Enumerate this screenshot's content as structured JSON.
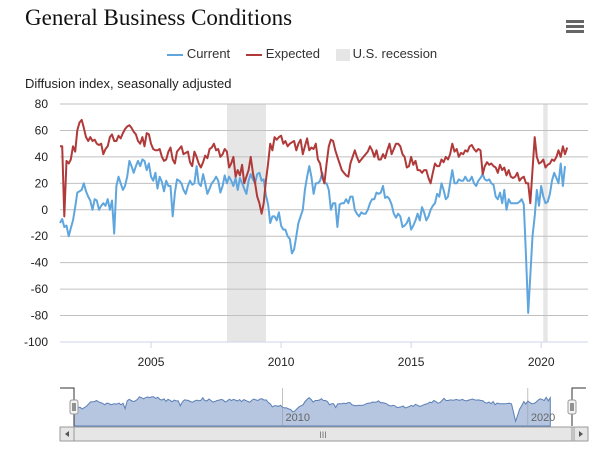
{
  "header": {
    "title": "General Business Conditions",
    "menu_icon": "hamburger-menu-icon"
  },
  "legend": [
    {
      "label": "Current",
      "color": "#5fa6de",
      "kind": "line"
    },
    {
      "label": "Expected",
      "color": "#b03a3a",
      "kind": "line"
    },
    {
      "label": "U.S. recession",
      "color": "#e6e6e6",
      "kind": "band"
    }
  ],
  "y_axis_title": "Diffusion index, seasonally adjusted",
  "navigator": {
    "labels": [
      "2010",
      "2020"
    ],
    "scrollbar_grip": "III",
    "left_arrow": "◂",
    "right_arrow": "▸"
  },
  "chart_data": {
    "type": "line",
    "title": "General Business Conditions",
    "ylabel": "Diffusion index, seasonally adjusted",
    "xlabel": "",
    "ylim": [
      -100,
      80
    ],
    "yticks": [
      80,
      60,
      40,
      20,
      0,
      -20,
      -40,
      -60,
      -80,
      -100
    ],
    "xticks": [
      "2005",
      "2010",
      "2015",
      "2020"
    ],
    "xlim": [
      2001.5,
      2021.8
    ],
    "grid": true,
    "legend_position": "top-center",
    "start": "2001-07",
    "frequency": "monthly",
    "recessions": [
      {
        "start": 2007.92,
        "end": 2009.42
      },
      {
        "start": 2020.08,
        "end": 2020.25
      }
    ],
    "series": [
      {
        "name": "Current",
        "color": "#5fa6de",
        "values": [
          -10,
          -7,
          -13,
          -12,
          -20,
          -14,
          -8,
          2,
          13,
          14,
          15,
          20,
          14,
          10,
          7,
          0,
          8,
          7,
          0,
          3,
          5,
          3,
          8,
          0,
          7,
          -18,
          18,
          25,
          20,
          15,
          18,
          25,
          37,
          33,
          28,
          33,
          37,
          33,
          38,
          37,
          30,
          35,
          25,
          22,
          28,
          16,
          25,
          21,
          14,
          22,
          18,
          18,
          -5,
          13,
          23,
          22,
          20,
          15,
          12,
          18,
          22,
          19,
          20,
          33,
          20,
          18,
          27,
          20,
          12,
          16,
          20,
          22,
          25,
          22,
          13,
          18,
          26,
          20,
          25,
          22,
          18,
          24,
          15,
          24,
          20,
          16,
          12,
          22,
          27,
          23,
          20,
          27,
          28,
          22,
          23,
          11,
          4,
          -10,
          -5,
          -5,
          -8,
          -2,
          -12,
          -15,
          -15,
          -20,
          -22,
          -33,
          -30,
          -20,
          -10,
          -5,
          0,
          15,
          25,
          33,
          25,
          12,
          20,
          20,
          22,
          28,
          20,
          20,
          15,
          0,
          5,
          5,
          -13,
          4,
          5,
          5,
          8,
          5,
          10,
          10,
          0,
          -3,
          -5,
          -2,
          -3,
          -3,
          0,
          5,
          8,
          8,
          13,
          12,
          13,
          18,
          9,
          10,
          8,
          4,
          -3,
          -6,
          -3,
          -5,
          -13,
          -12,
          -10,
          -6,
          -15,
          -12,
          -8,
          -3,
          -8,
          2,
          -2,
          -8,
          -5,
          0,
          3,
          5,
          12,
          10,
          20,
          15,
          8,
          10,
          20,
          30,
          20,
          20,
          23,
          22,
          22,
          25,
          22,
          22,
          25,
          20,
          18,
          22,
          24,
          27,
          23,
          22,
          23,
          20,
          19,
          10,
          8,
          13,
          5,
          15,
          0,
          8,
          5,
          5,
          5,
          5,
          6,
          8,
          4,
          -35,
          -78,
          -50,
          -20,
          -5,
          15,
          3,
          18,
          10,
          5,
          6,
          12,
          22,
          28,
          24,
          20,
          35,
          18,
          33
        ]
      },
      {
        "name": "Expected",
        "color": "#b03a3a",
        "values": [
          48,
          48,
          -5,
          37,
          35,
          38,
          48,
          44,
          60,
          66,
          68,
          62,
          55,
          52,
          55,
          52,
          53,
          50,
          49,
          50,
          42,
          46,
          48,
          55,
          57,
          52,
          52,
          56,
          54,
          58,
          61,
          63,
          64,
          62,
          59,
          57,
          52,
          50,
          55,
          48,
          58,
          57,
          50,
          46,
          45,
          45,
          46,
          40,
          37,
          38,
          44,
          47,
          38,
          35,
          44,
          46,
          48,
          42,
          43,
          44,
          36,
          33,
          44,
          40,
          35,
          32,
          36,
          41,
          39,
          46,
          47,
          50,
          45,
          46,
          40,
          42,
          46,
          44,
          32,
          35,
          40,
          25,
          30,
          26,
          34,
          20,
          25,
          30,
          40,
          28,
          20,
          10,
          5,
          -3,
          5,
          22,
          35,
          50,
          45,
          55,
          53,
          55,
          56,
          50,
          52,
          48,
          50,
          51,
          52,
          45,
          50,
          53,
          42,
          48,
          54,
          45,
          47,
          46,
          50,
          38,
          35,
          25,
          20,
          35,
          48,
          53,
          52,
          45,
          40,
          35,
          30,
          28,
          26,
          25,
          35,
          40,
          45,
          40,
          36,
          38,
          40,
          42,
          44,
          48,
          45,
          40,
          45,
          38,
          38,
          42,
          39,
          45,
          50,
          42,
          46,
          50,
          50,
          48,
          42,
          40,
          32,
          33,
          40,
          34,
          37,
          30,
          30,
          28,
          30,
          30,
          24,
          20,
          28,
          35,
          33,
          33,
          38,
          36,
          40,
          38,
          42,
          50,
          44,
          46,
          40,
          43,
          42,
          45,
          44,
          48,
          49,
          46,
          44,
          46,
          45,
          27,
          33,
          36,
          34,
          35,
          33,
          32,
          28,
          34,
          30,
          32,
          26,
          30,
          25,
          24,
          25,
          28,
          22,
          24,
          25,
          20,
          20,
          5,
          30,
          55,
          40,
          35,
          36,
          38,
          32,
          34,
          35,
          38,
          37,
          40,
          45,
          40,
          48,
          42,
          47
        ]
      }
    ]
  }
}
